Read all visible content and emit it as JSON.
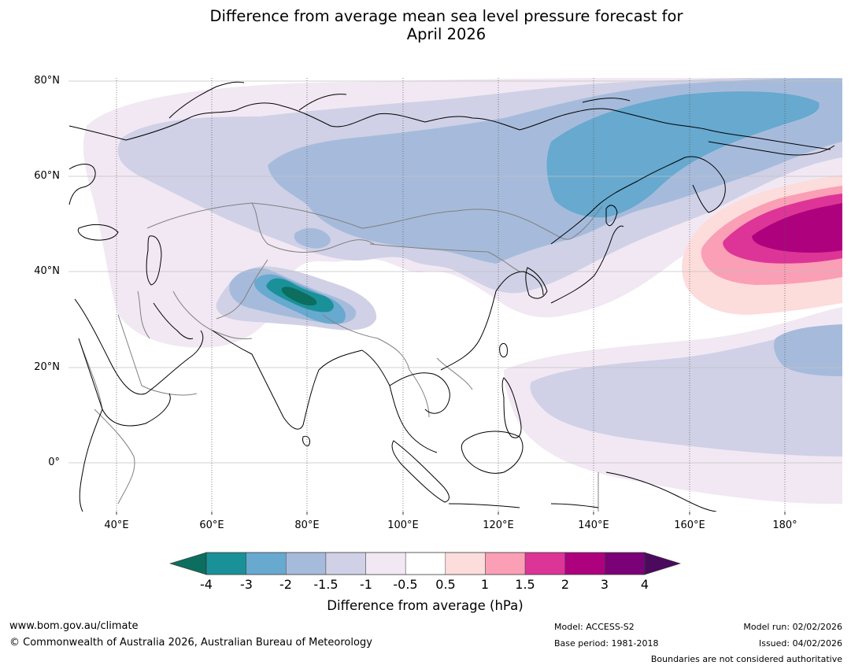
{
  "title": {
    "line1": "Difference from average mean sea level pressure forecast for",
    "line2": "April 2026"
  },
  "map": {
    "region": "Asia and western Pacific",
    "projection": "plate carree",
    "lon_range": [
      30,
      192
    ],
    "lat_range": [
      -10,
      81
    ],
    "lat_ticks": [
      "80°N",
      "60°N",
      "40°N",
      "20°N",
      "0°"
    ],
    "lon_ticks": [
      "40°E",
      "60°E",
      "80°E",
      "100°E",
      "120°E",
      "140°E",
      "160°E",
      "180°"
    ],
    "gridlines": true,
    "coastline_color": "#000000",
    "border_color": "#808080"
  },
  "colorbar": {
    "title": "Difference from average (hPa)",
    "tick_labels": [
      "-4",
      "-3",
      "-2",
      "-1.5",
      "-1",
      "-0.5",
      "0.5",
      "1",
      "1.5",
      "2",
      "3",
      "4"
    ],
    "low_extend_color": "#0b6e5e",
    "high_extend_color": "#4b0a5e",
    "colors": [
      "#1a9198",
      "#67a9cf",
      "#a6bbdb",
      "#d0d1e6",
      "#f1e8f3",
      "#ffffff",
      "#fddcdc",
      "#fa9fb5",
      "#dd3497",
      "#ae017e",
      "#7a0177"
    ]
  },
  "footer": {
    "website": "www.bom.gov.au/climate",
    "copyright": "© Commonwealth of Australia 2026, Australian Bureau of Meteorology",
    "model": "Model: ACCESS-S2",
    "base_period": "Base period: 1981-2018",
    "model_run": "Model run: 02/02/2026",
    "issued": "Issued: 04/02/2026",
    "disclaimer": "Boundaries are not considered authoritative"
  }
}
